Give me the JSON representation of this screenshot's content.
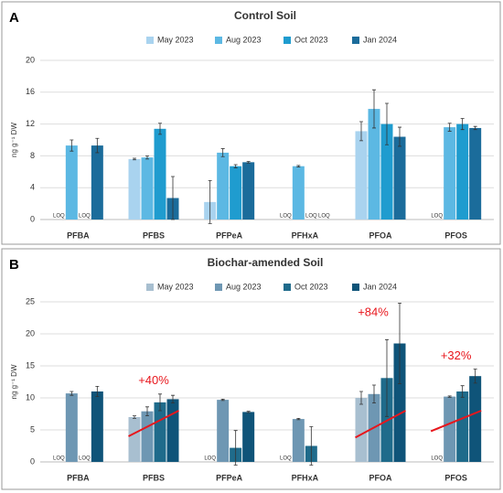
{
  "chart_data": [
    {
      "type": "bar",
      "panel_label": "A",
      "title": "Control Soil",
      "y_label": "ng g⁻¹ DW",
      "categories": [
        "PFBA",
        "PFBS",
        "PFPeA",
        "PFHxA",
        "PFOA",
        "PFOS"
      ],
      "ylim": [
        0,
        20
      ],
      "yticks": [
        0,
        4,
        8,
        12,
        16,
        20
      ],
      "grid": true,
      "series": [
        {
          "name": "May 2023",
          "color": "#a9d3ef",
          "values": [
            null,
            7.6,
            2.2,
            null,
            11.1,
            null
          ],
          "errors": [
            null,
            0.1,
            2.7,
            null,
            1.2,
            null
          ],
          "value_labels": [
            "LOQ",
            null,
            null,
            "LOQ",
            null,
            "LOQ"
          ]
        },
        {
          "name": "Aug 2023",
          "color": "#5cb8e3",
          "values": [
            9.3,
            7.8,
            8.4,
            6.7,
            13.9,
            11.6
          ],
          "errors": [
            0.7,
            0.2,
            0.5,
            0.1,
            2.4,
            0.5
          ],
          "value_labels": [
            null,
            null,
            null,
            null,
            null,
            null
          ]
        },
        {
          "name": "Oct 2023",
          "color": "#1f9ccf",
          "values": [
            null,
            11.4,
            6.7,
            null,
            12.0,
            12.0
          ],
          "errors": [
            null,
            0.7,
            0.2,
            null,
            2.6,
            0.7
          ],
          "value_labels": [
            "LOQ",
            null,
            null,
            "LOQ",
            null,
            null
          ]
        },
        {
          "name": "Jan 2024",
          "color": "#1b6c9b",
          "values": [
            9.3,
            2.7,
            7.2,
            null,
            10.4,
            11.5
          ],
          "errors": [
            0.9,
            2.7,
            0.1,
            null,
            1.2,
            0.2
          ],
          "value_labels": [
            null,
            null,
            null,
            "LOQ",
            null,
            null
          ]
        }
      ]
    },
    {
      "type": "bar",
      "panel_label": "B",
      "title": "Biochar-amended Soil",
      "y_label": "ng g⁻¹ DW",
      "categories": [
        "PFBA",
        "PFBS",
        "PFPeA",
        "PFHxA",
        "PFOA",
        "PFOS"
      ],
      "ylim": [
        0,
        25
      ],
      "yticks": [
        0,
        5,
        10,
        15,
        20,
        25
      ],
      "grid": true,
      "series": [
        {
          "name": "May 2023",
          "color": "#a8bfd0",
          "values": [
            null,
            7.0,
            null,
            null,
            10.0,
            null
          ],
          "errors": [
            null,
            0.2,
            null,
            null,
            1.0,
            null
          ],
          "value_labels": [
            "LOQ",
            null,
            "LOQ",
            "LOQ",
            null,
            "LOQ"
          ]
        },
        {
          "name": "Aug 2023",
          "color": "#6e97b3",
          "values": [
            10.7,
            7.9,
            9.7,
            6.7,
            10.6,
            10.2
          ],
          "errors": [
            0.3,
            0.7,
            0.1,
            0.1,
            1.4,
            0.1
          ],
          "value_labels": [
            null,
            null,
            null,
            null,
            null,
            null
          ]
        },
        {
          "name": "Oct 2023",
          "color": "#1f6b8b",
          "values": [
            null,
            9.3,
            2.2,
            2.5,
            13.1,
            11.0
          ],
          "errors": [
            null,
            1.3,
            2.7,
            3.0,
            6.0,
            0.9
          ],
          "value_labels": [
            "LOQ",
            null,
            null,
            null,
            null,
            null
          ]
        },
        {
          "name": "Jan 2024",
          "color": "#0f5479",
          "values": [
            11.0,
            9.8,
            7.8,
            null,
            18.5,
            13.4
          ],
          "errors": [
            0.8,
            0.6,
            0.1,
            null,
            6.3,
            1.1
          ],
          "value_labels": [
            null,
            null,
            null,
            null,
            null,
            null
          ]
        }
      ],
      "trend_lines": [
        {
          "category": "PFBS",
          "start": 4.0,
          "end": 8.0,
          "label": "+40%",
          "color": "#e8161c"
        },
        {
          "category": "PFOA",
          "start": 3.8,
          "end": 8.0,
          "label": "+84%",
          "color": "#e8161c"
        },
        {
          "category": "PFOS",
          "start": 4.8,
          "end": 8.0,
          "label": "+32%",
          "color": "#e8161c"
        }
      ]
    }
  ]
}
